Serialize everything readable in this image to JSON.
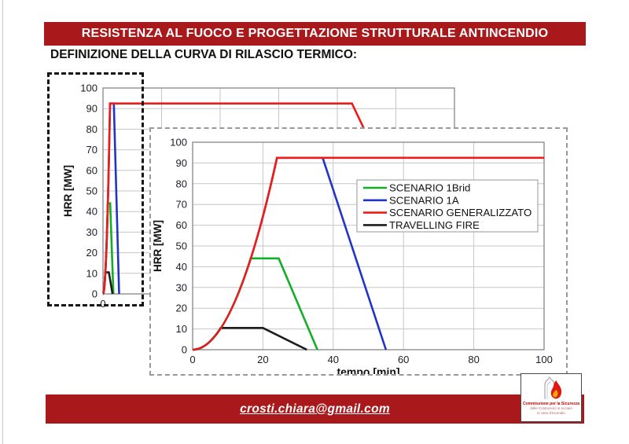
{
  "slide": {
    "title": "RESISTENZA AL FUOCO E PROGETTAZIONE STRUTTURALE ANTINCENDIO",
    "subtitle": "DEFINIZIONE DELLA CURVA DI RILASCIO TERMICO:",
    "footer": {
      "email": "crosti.chiara@gmail.com"
    },
    "colors": {
      "banner": "#a9191c",
      "grid": "#c6c6c6",
      "plot_border": "#8f8f8f",
      "tick_text": "#1c1c28"
    }
  },
  "logo": {
    "line1": "Commissione per la Sicurezza",
    "line2": "delle Costruzioni in Acciaio",
    "line3": "in caso d'Incendio",
    "flame_color": "#dd1b14",
    "flame_core_color": "#f6a800"
  },
  "chart_data": [
    {
      "id": "detail",
      "type": "line",
      "title": "",
      "xlabel": "tempo [min]",
      "ylabel": "HRR [MW]",
      "xlim": [
        0,
        100
      ],
      "ylim": [
        0,
        100
      ],
      "x_ticks": [
        0,
        20,
        40,
        60,
        80,
        100
      ],
      "y_ticks": [
        0,
        10,
        20,
        30,
        40,
        50,
        60,
        70,
        80,
        90,
        100
      ],
      "grid": true,
      "legend_position": "inside upper right",
      "rise_shape": "quadratic",
      "series": [
        {
          "name": "SCENARIO 1Brid",
          "color": "#10af27",
          "points": [
            [
              0,
              0
            ],
            [
              16.5,
              44
            ],
            [
              24.5,
              44
            ],
            [
              35.5,
              0
            ]
          ]
        },
        {
          "name": "SCENARIO 1A",
          "color": "#2234c8",
          "points": [
            [
              0,
              0
            ],
            [
              24,
              92.5
            ],
            [
              37,
              92.5
            ],
            [
              55,
              0
            ]
          ]
        },
        {
          "name": "SCENARIO GENERALIZZATO",
          "color": "#ed1c16",
          "points": [
            [
              0,
              0
            ],
            [
              24,
              92.5
            ],
            [
              100,
              92.5
            ]
          ]
        },
        {
          "name": "TRAVELLING FIRE",
          "color": "#1d1d1d",
          "points": [
            [
              0,
              0
            ],
            [
              8,
              10.5
            ],
            [
              20,
              10.5
            ],
            [
              32.5,
              0
            ]
          ]
        }
      ]
    },
    {
      "id": "overview",
      "type": "line",
      "title": "",
      "xlabel": "",
      "ylabel": "HRR [MW]",
      "xlim": [
        0,
        1200
      ],
      "ylim": [
        0,
        100
      ],
      "x_ticks": [
        0
      ],
      "x_gridline_step": 200,
      "y_ticks": [
        0,
        10,
        20,
        30,
        40,
        50,
        60,
        70,
        80,
        90,
        100
      ],
      "grid": true,
      "legend_position": "none",
      "rise_shape": "quadratic",
      "series": [
        {
          "name": "SCENARIO 1Brid",
          "color": "#10af27",
          "points": [
            [
              0,
              0
            ],
            [
              16.5,
              44
            ],
            [
              24.5,
              44
            ],
            [
              35.5,
              0
            ]
          ]
        },
        {
          "name": "SCENARIO 1A",
          "color": "#2234c8",
          "points": [
            [
              0,
              0
            ],
            [
              24,
              92.5
            ],
            [
              37,
              92.5
            ],
            [
              55,
              0
            ]
          ]
        },
        {
          "name": "SCENARIO GENERALIZZATO",
          "color": "#ed1c16",
          "points": [
            [
              0,
              0
            ],
            [
              24,
              92.5
            ],
            [
              850,
              92.5
            ],
            [
              1160,
              0
            ]
          ]
        },
        {
          "name": "TRAVELLING FIRE",
          "color": "#1d1d1d",
          "points": [
            [
              0,
              0
            ],
            [
              8,
              10.5
            ],
            [
              20,
              10.5
            ],
            [
              32.5,
              0
            ]
          ]
        }
      ]
    }
  ]
}
